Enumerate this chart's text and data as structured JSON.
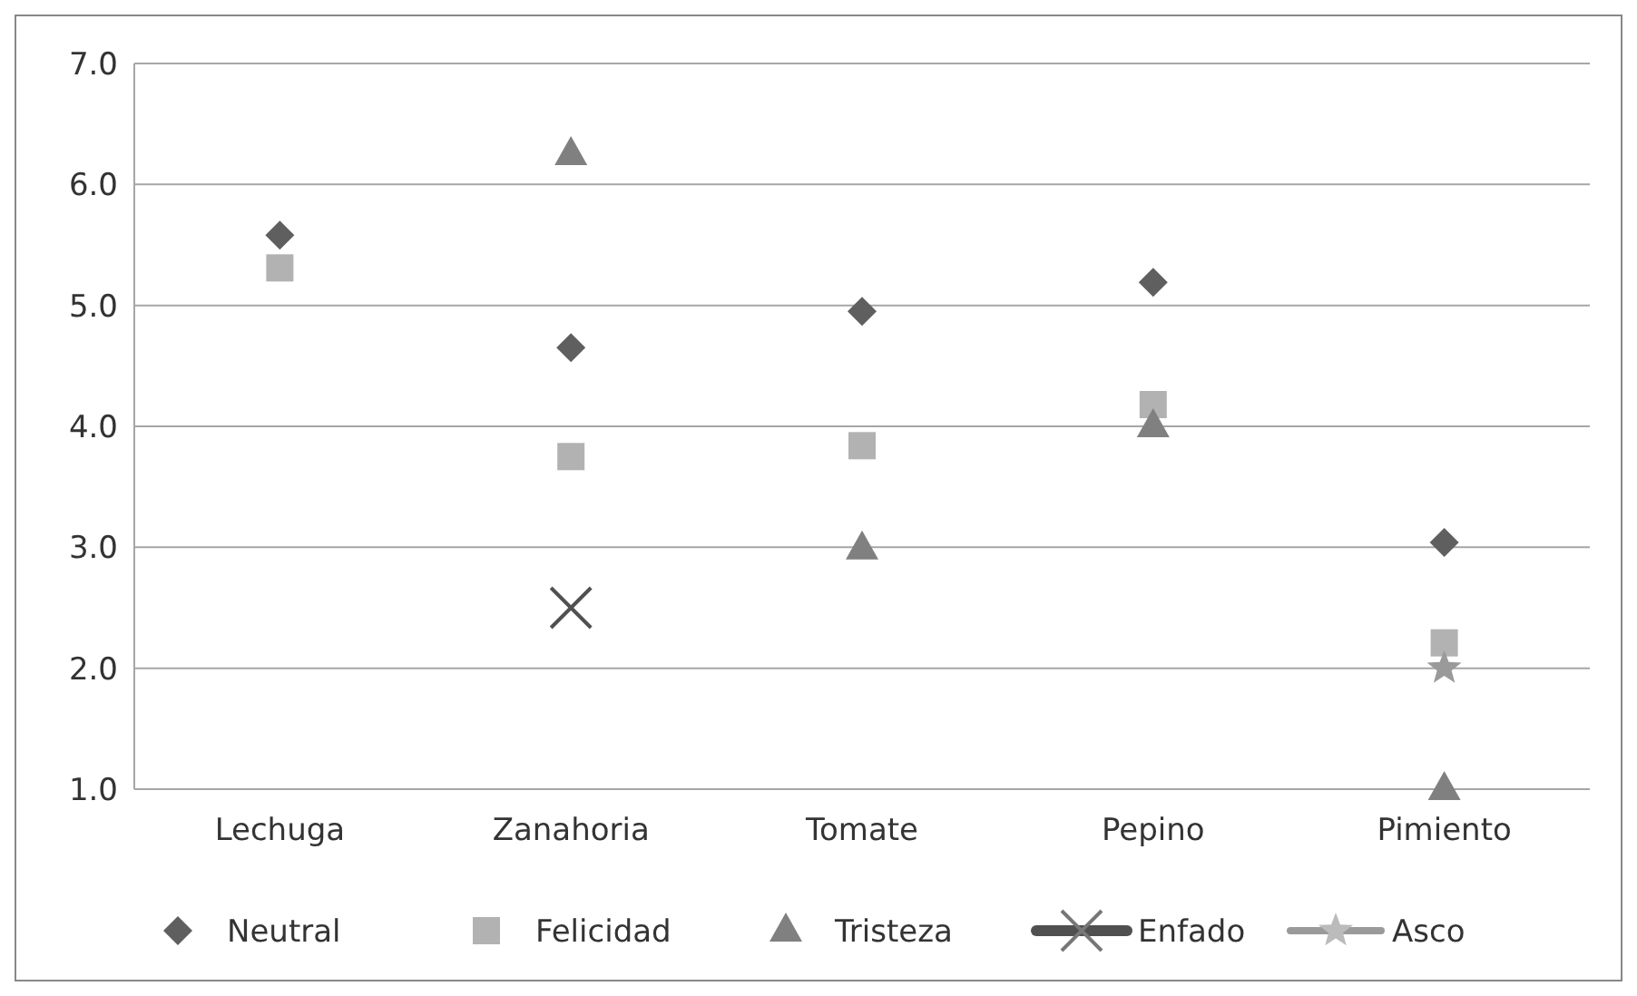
{
  "chart_data": {
    "type": "scatter",
    "categories": [
      "Lechuga",
      "Zanahoria",
      "Tomate",
      "Pepino",
      "Pimiento"
    ],
    "ylim": [
      1,
      7
    ],
    "yticks": [
      {
        "value": 1,
        "label": "1.0"
      },
      {
        "value": 2,
        "label": "2.0"
      },
      {
        "value": 3,
        "label": "3.0"
      },
      {
        "value": 4,
        "label": "4.0"
      },
      {
        "value": 5,
        "label": "5.0"
      },
      {
        "value": 6,
        "label": "6.0"
      },
      {
        "value": 7,
        "label": "7.0"
      }
    ],
    "grid": "y",
    "legend": "bottom",
    "series": [
      {
        "name": "Neutral",
        "color": "#5f5f5f",
        "marker": "diamond",
        "values": [
          5.58,
          4.65,
          4.95,
          5.19,
          3.04
        ]
      },
      {
        "name": "Felicidad",
        "color": "#b2b2b2",
        "marker": "square",
        "values": [
          5.31,
          3.75,
          3.84,
          4.18,
          2.21
        ]
      },
      {
        "name": "Tristeza",
        "color": "#808080",
        "marker": "triangle",
        "values": [
          null,
          6.25,
          2.99,
          4.0,
          1.0
        ]
      },
      {
        "name": "Enfado",
        "color": "#505050",
        "marker": "cross",
        "values": [
          null,
          2.5,
          null,
          null,
          null
        ]
      },
      {
        "name": "Asco",
        "color": "#9a9a9a",
        "marker": "star",
        "values": [
          null,
          null,
          null,
          null,
          2.0
        ]
      }
    ]
  }
}
